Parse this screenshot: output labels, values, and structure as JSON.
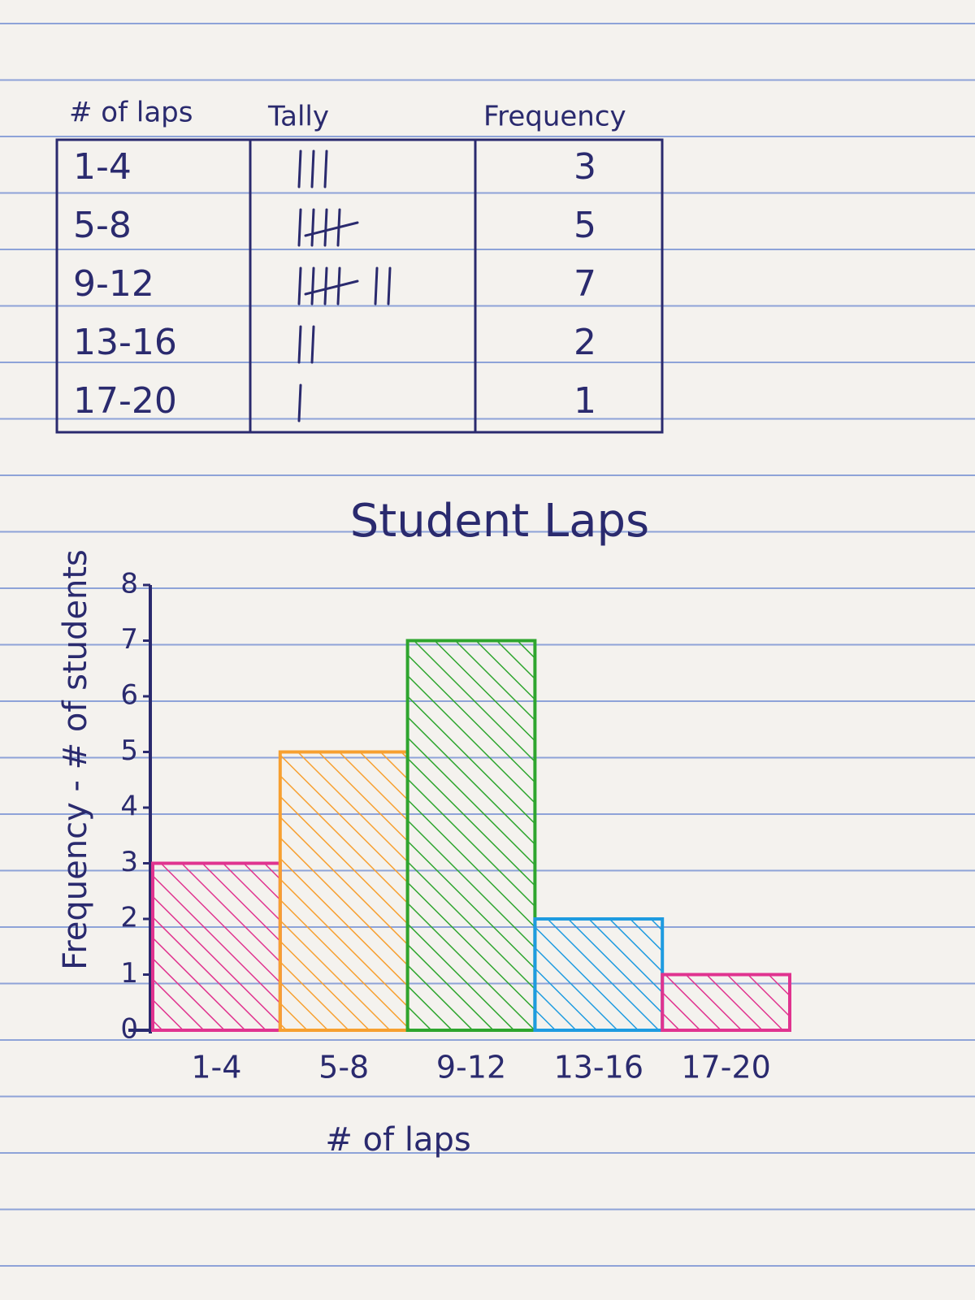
{
  "table": {
    "header": [
      "# of laps",
      "Tally",
      "Frequency"
    ],
    "rows": [
      {
        "range": "1-4",
        "frequency": 3
      },
      {
        "range": "5-8",
        "frequency": 5
      },
      {
        "range": "9-12",
        "frequency": 7
      },
      {
        "range": "13-16",
        "frequency": 2
      },
      {
        "range": "17-20",
        "frequency": 1
      }
    ]
  },
  "chart_data": {
    "type": "bar",
    "title": "Student Laps",
    "x_label": "# of laps",
    "y_label": "Frequency - # of students",
    "categories": [
      "1-4",
      "5-8",
      "9-12",
      "13-16",
      "17-20"
    ],
    "values": [
      3,
      5,
      7,
      2,
      1
    ],
    "colors": [
      "#e0338f",
      "#f7a030",
      "#2ea52e",
      "#1e9be0",
      "#e0338f"
    ],
    "ylim": [
      0,
      8
    ],
    "yticks": [
      0,
      1,
      2,
      3,
      4,
      5,
      6,
      7,
      8
    ],
    "grid": false
  }
}
